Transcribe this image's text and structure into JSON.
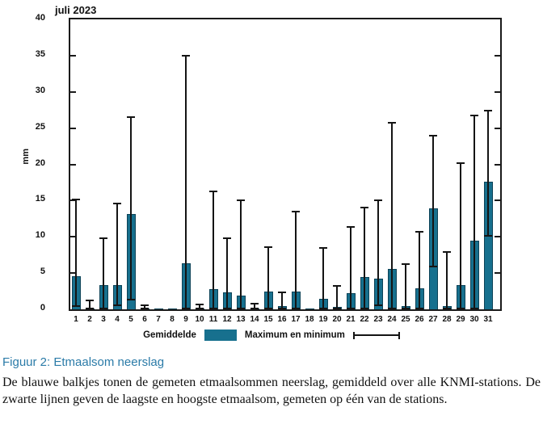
{
  "chart_data": {
    "type": "bar",
    "title": "juli 2023",
    "xlabel": "",
    "ylabel": "mm",
    "ylim": [
      0,
      40
    ],
    "ytick_step": 5,
    "grid": false,
    "legend_position": "bottom",
    "bar_color": "#17708E",
    "axis_color": "#1A1A1A",
    "categories": [
      1,
      2,
      3,
      4,
      5,
      6,
      7,
      8,
      9,
      10,
      11,
      12,
      13,
      14,
      15,
      16,
      17,
      18,
      19,
      20,
      21,
      22,
      23,
      24,
      25,
      26,
      27,
      28,
      29,
      30,
      31
    ],
    "series": [
      {
        "name": "Gemiddelde",
        "values": [
          4.6,
          0.1,
          3.3,
          3.4,
          13.2,
          0.15,
          0.05,
          0.05,
          6.4,
          0.1,
          2.8,
          2.3,
          1.9,
          0.1,
          2.5,
          0.4,
          2.5,
          0.05,
          1.5,
          0.35,
          2.2,
          4.5,
          4.2,
          5.6,
          0.4,
          2.9,
          13.9,
          0.4,
          3.3,
          9.5,
          17.6
        ]
      },
      {
        "name": "Maximum",
        "values": [
          15.3,
          1.3,
          9.9,
          14.7,
          26.6,
          0.7,
          0.05,
          0.05,
          35.1,
          0.8,
          16.4,
          9.9,
          15.2,
          0.9,
          8.7,
          2.4,
          13.6,
          0.05,
          8.6,
          3.3,
          11.5,
          14.2,
          15.1,
          25.9,
          6.3,
          10.8,
          24.1,
          8.0,
          20.3,
          26.9,
          27.5
        ]
      },
      {
        "name": "Minimum",
        "values": [
          0.3,
          0,
          0,
          0.4,
          1.2,
          0,
          0,
          0,
          0,
          0,
          0,
          0,
          0,
          0,
          0,
          0,
          0,
          0,
          0,
          0,
          0,
          0,
          0.4,
          0,
          0,
          0,
          5.8,
          0,
          0,
          0,
          10.0
        ]
      }
    ],
    "legend": {
      "bar_label": "Gemiddelde",
      "range_label": "Maximum en minimum"
    }
  },
  "caption": {
    "heading": "Figuur 2: Etmaalsom neerslag",
    "body": "De blauwe balkjes tonen de gemeten etmaalsommen neerslag, gemiddeld over alle KNMI-stations. De zwarte lijnen geven de laagste en hoogste etmaalsom, gemeten op één van de stations."
  }
}
